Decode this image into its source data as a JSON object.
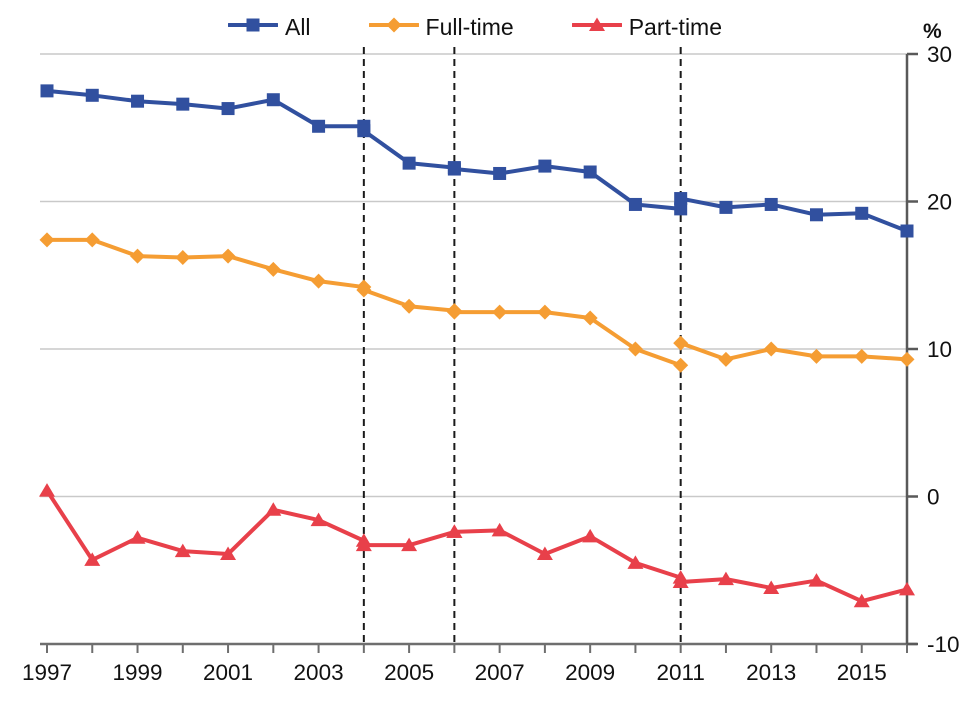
{
  "chart_data": {
    "type": "line",
    "title": "",
    "ylabel": "%",
    "xlabel": "",
    "xlim": [
      1997,
      2016
    ],
    "ylim": [
      -10,
      30
    ],
    "grid": "horizontal-only",
    "gridline_values": [
      30,
      20,
      10,
      0
    ],
    "legend_position": "top-center",
    "x_tick_years": [
      1997,
      1998,
      1999,
      2000,
      2001,
      2002,
      2003,
      2004,
      2005,
      2006,
      2007,
      2008,
      2009,
      2010,
      2011,
      2012,
      2013,
      2014,
      2015,
      2016
    ],
    "x_tick_labels": [
      "1997",
      "1999",
      "2001",
      "2003",
      "2005",
      "2007",
      "2009",
      "2011",
      "2013",
      "2015"
    ],
    "x_labeled_years": [
      1997,
      1999,
      2001,
      2003,
      2005,
      2007,
      2009,
      2011,
      2013,
      2015
    ],
    "y_tick_labels": [
      "30",
      "20",
      "10",
      "0",
      "-10"
    ],
    "y_tick_values": [
      30,
      20,
      10,
      0,
      -10
    ],
    "dashed_vertical_line_years": [
      2004,
      2006,
      2011
    ],
    "colors": {
      "grid": "#c9c9c9",
      "axis": "#6e6e6e",
      "dashed_line": "#1a1a1a",
      "text": "#111111"
    },
    "series": [
      {
        "name": "All",
        "marker": "square",
        "color": "#31509f",
        "segments": [
          {
            "years": [
              1997,
              1998,
              1999,
              2000,
              2001,
              2002,
              2003,
              2004
            ],
            "values": [
              27.5,
              27.2,
              26.8,
              26.6,
              26.3,
              26.9,
              25.1,
              25.1
            ]
          },
          {
            "years": [
              2004,
              2005,
              2006
            ],
            "values": [
              24.8,
              22.6,
              22.3
            ]
          },
          {
            "years": [
              2006,
              2007,
              2008,
              2009,
              2010,
              2011
            ],
            "values": [
              22.2,
              21.9,
              22.4,
              22.0,
              19.8,
              19.5
            ]
          },
          {
            "years": [
              2011,
              2012,
              2013,
              2014,
              2015,
              2016
            ],
            "values": [
              20.2,
              19.6,
              19.8,
              19.1,
              19.2,
              18.0
            ]
          }
        ]
      },
      {
        "name": "Full-time",
        "marker": "diamond",
        "color": "#f59d33",
        "segments": [
          {
            "years": [
              1997,
              1998,
              1999,
              2000,
              2001,
              2002,
              2003,
              2004
            ],
            "values": [
              17.4,
              17.4,
              16.3,
              16.2,
              16.3,
              15.4,
              14.6,
              14.2
            ]
          },
          {
            "years": [
              2004,
              2005,
              2006
            ],
            "values": [
              14.0,
              12.9,
              12.6
            ]
          },
          {
            "years": [
              2006,
              2007,
              2008,
              2009,
              2010,
              2011
            ],
            "values": [
              12.5,
              12.5,
              12.5,
              12.1,
              10.0,
              8.9
            ]
          },
          {
            "years": [
              2011,
              2012,
              2013,
              2014,
              2015,
              2016
            ],
            "values": [
              10.4,
              9.3,
              10.0,
              9.5,
              9.5,
              9.3
            ]
          }
        ]
      },
      {
        "name": "Part-time",
        "marker": "triangle",
        "color": "#e8404a",
        "segments": [
          {
            "years": [
              1997,
              1998,
              1999,
              2000,
              2001,
              2002,
              2003,
              2004
            ],
            "values": [
              0.4,
              -4.3,
              -2.8,
              -3.7,
              -3.9,
              -0.9,
              -1.6,
              -3.0
            ]
          },
          {
            "years": [
              2004,
              2005,
              2006
            ],
            "values": [
              -3.3,
              -3.3,
              -2.4
            ]
          },
          {
            "years": [
              2006,
              2007,
              2008,
              2009,
              2010,
              2011
            ],
            "values": [
              -2.4,
              -2.3,
              -3.9,
              -2.7,
              -4.5,
              -5.5
            ]
          },
          {
            "years": [
              2011,
              2012,
              2013,
              2014,
              2015,
              2016
            ],
            "values": [
              -5.8,
              -5.6,
              -6.2,
              -5.7,
              -7.1,
              -6.3
            ]
          }
        ]
      }
    ]
  }
}
